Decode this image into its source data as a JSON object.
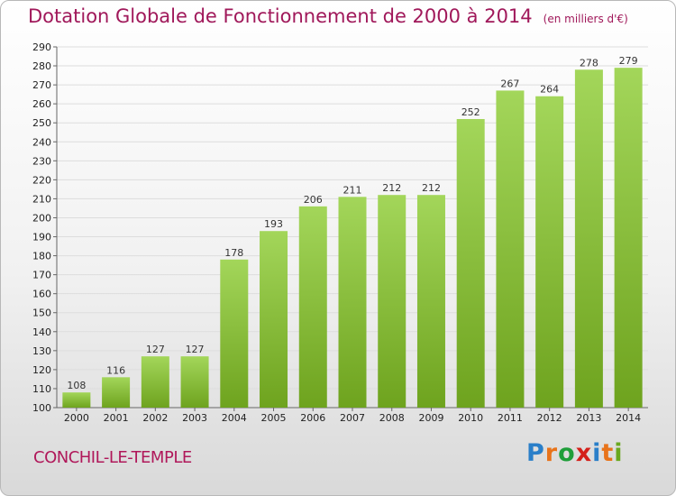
{
  "header": {
    "title": "Dotation Globale de Fonctionnement de 2000 à 2014",
    "unit": "(en milliers d'€)"
  },
  "footer": {
    "commune": "CONCHIL-LE-TEMPLE",
    "logo": "Proxiti"
  },
  "colors": {
    "title": "#a0185a",
    "bar_top": "#a3d65a",
    "bar_bottom": "#6ea31e",
    "gridline": "#dddddd"
  },
  "chart_data": {
    "type": "bar",
    "title": "Dotation Globale de Fonctionnement de 2000 à 2014",
    "subtitle": "(en milliers d'€)",
    "xlabel": "",
    "ylabel": "",
    "categories": [
      "2000",
      "2001",
      "2002",
      "2003",
      "2004",
      "2005",
      "2006",
      "2007",
      "2008",
      "2009",
      "2010",
      "2011",
      "2012",
      "2013",
      "2014"
    ],
    "values": [
      108,
      116,
      127,
      127,
      178,
      193,
      206,
      211,
      212,
      212,
      252,
      267,
      264,
      278,
      279
    ],
    "ylim": [
      100,
      290
    ],
    "ytick_step": 10,
    "grid": true,
    "legend": "none"
  }
}
